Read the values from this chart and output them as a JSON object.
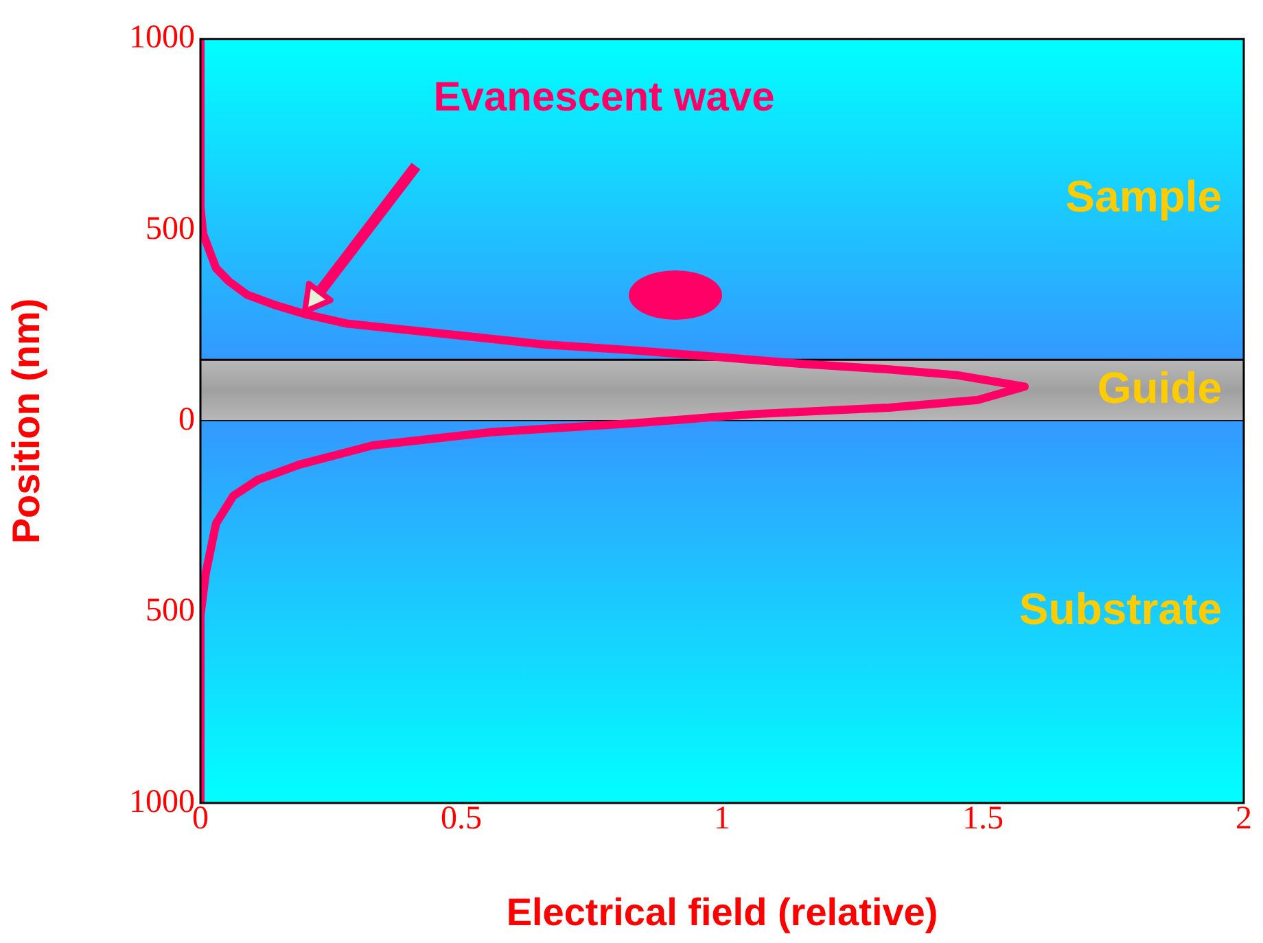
{
  "chart_data": {
    "type": "line",
    "xlabel": "Electrical field (relative)",
    "ylabel": "Position (nm)",
    "xlim": [
      0,
      2
    ],
    "xticks": [
      0,
      0.5,
      1,
      1.5,
      2
    ],
    "ylim": [
      -1000,
      1000
    ],
    "yticks": [
      {
        "value": -1000,
        "label": "1000"
      },
      {
        "value": -500,
        "label": "500"
      },
      0,
      500,
      1000
    ],
    "marker": "none",
    "line_style": "solid",
    "series": [
      {
        "color": "#ff0066",
        "x": [
          0,
          0,
          0.005,
          0.03,
          0.055,
          0.09,
          0.14,
          0.2,
          0.28,
          0.49,
          0.66,
          0.82,
          0.97,
          1.15,
          1.32,
          1.45,
          1.58,
          1.49,
          1.32,
          1.06,
          0.82,
          0.56,
          0.33,
          0.19,
          0.11,
          0.063,
          0.03,
          0.01,
          0,
          0
        ],
        "values": [
          1000,
          560,
          490,
          400,
          365,
          330,
          305,
          280,
          255,
          225,
          200,
          186,
          170,
          150,
          135,
          120,
          90,
          55,
          35,
          18,
          -7,
          -29,
          -64,
          -114,
          -154,
          -196,
          -268,
          -400,
          -510,
          -1000
        ]
      }
    ],
    "bands": [
      {
        "axis": "y",
        "from": 160,
        "to": 1000,
        "label": "Sample",
        "color": "#3399ff"
      },
      {
        "axis": "y",
        "from": 0,
        "to": 160,
        "label": "Guide",
        "color": "#a0a0a0"
      },
      {
        "axis": "y",
        "from": -1000,
        "to": 0,
        "label": "Substrate",
        "color": "#3399ff"
      }
    ],
    "annotations": [
      "Evanescent wave"
    ]
  }
}
